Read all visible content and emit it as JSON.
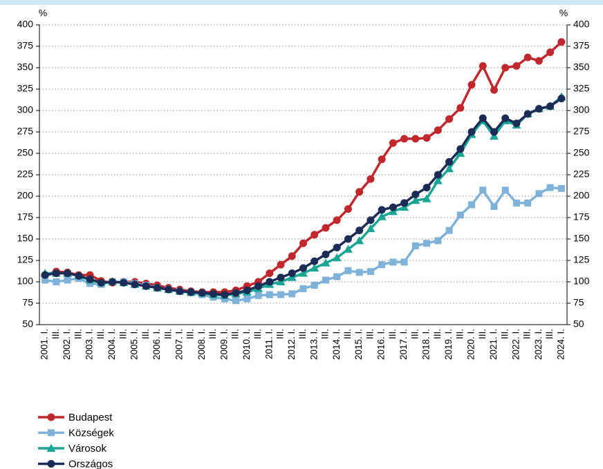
{
  "chart_data": {
    "type": "line",
    "y_unit": "%",
    "y2_unit": "%",
    "categories": [
      "2001. I.",
      "III.",
      "2002. I.",
      "III.",
      "2003. I.",
      "III.",
      "2004. I.",
      "III.",
      "2005. I.",
      "III.",
      "2006. I.",
      "III.",
      "2007. I.",
      "III.",
      "2008. I.",
      "III.",
      "2009. I.",
      "III.",
      "2010. I.",
      "III.",
      "2011. I.",
      "III.",
      "2012. I.",
      "III.",
      "2013. I.",
      "III.",
      "2014. I.",
      "III.",
      "2015. I.",
      "III.",
      "2016. I.",
      "III.",
      "2017. I.",
      "III.",
      "2018. I.",
      "III.",
      "2019. I.",
      "III.",
      "2020. I.",
      "III.",
      "2021. I.",
      "III.",
      "2022. I.",
      "III.",
      "2023. I.",
      "III.",
      "2024. I."
    ],
    "series": [
      {
        "name": "Budapest",
        "color": "#c0282d",
        "marker": "circle",
        "values": [
          108,
          112,
          111,
          108,
          108,
          101,
          99,
          100,
          100,
          98,
          96,
          93,
          91,
          89,
          88,
          88,
          88,
          90,
          95,
          100,
          110,
          120,
          130,
          145,
          155,
          163,
          172,
          185,
          205,
          220,
          243,
          262,
          267,
          267,
          268,
          277,
          290,
          303,
          330,
          352,
          324,
          350,
          352,
          362,
          358,
          368,
          380
        ]
      },
      {
        "name": "Községek",
        "color": "#7fb2d9",
        "marker": "square",
        "values": [
          102,
          100,
          102,
          104,
          98,
          97,
          100,
          100,
          98,
          96,
          93,
          91,
          89,
          87,
          85,
          82,
          80,
          78,
          80,
          84,
          85,
          85,
          86,
          92,
          96,
          102,
          106,
          113,
          111,
          112,
          120,
          123,
          123,
          142,
          145,
          148,
          160,
          178,
          190,
          207,
          188,
          207,
          192,
          192,
          203,
          210,
          209
        ]
      },
      {
        "name": "Városok",
        "color": "#1aa595",
        "marker": "triangle",
        "values": [
          110,
          110,
          110,
          107,
          102,
          99,
          100,
          99,
          97,
          95,
          93,
          91,
          89,
          88,
          87,
          85,
          84,
          86,
          88,
          92,
          97,
          100,
          105,
          110,
          116,
          122,
          128,
          138,
          148,
          162,
          176,
          182,
          187,
          195,
          197,
          218,
          232,
          250,
          272,
          288,
          270,
          288,
          283,
          296,
          302,
          305,
          316
        ]
      },
      {
        "name": "Országos",
        "color": "#1b2c57",
        "marker": "circle",
        "values": [
          108,
          110,
          110,
          107,
          103,
          99,
          100,
          99,
          97,
          95,
          93,
          91,
          89,
          88,
          87,
          86,
          85,
          87,
          90,
          95,
          100,
          105,
          110,
          116,
          124,
          132,
          140,
          150,
          160,
          172,
          184,
          187,
          192,
          202,
          210,
          225,
          240,
          255,
          275,
          291,
          275,
          291,
          285,
          296,
          302,
          305,
          314
        ]
      }
    ],
    "ylim": [
      50,
      400
    ],
    "yticks": [
      50,
      75,
      100,
      125,
      150,
      175,
      200,
      225,
      250,
      275,
      300,
      325,
      350,
      375,
      400
    ],
    "y2lim": [
      50,
      400
    ],
    "y2ticks": [
      50,
      75,
      100,
      125,
      150,
      175,
      200,
      225,
      250,
      275,
      300,
      325,
      350,
      375,
      400
    ],
    "grid": true,
    "legend": "bottom-left"
  }
}
